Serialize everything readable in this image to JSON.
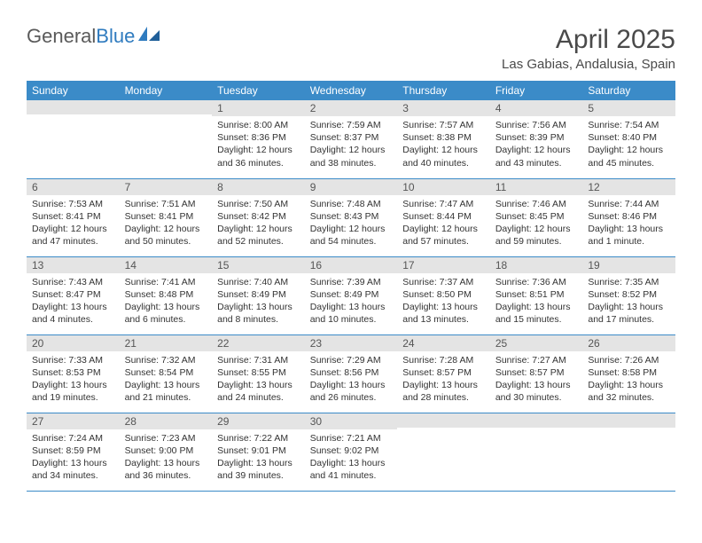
{
  "brand": {
    "part1": "General",
    "part2": "Blue"
  },
  "title": "April 2025",
  "location": "Las Gabias, Andalusia, Spain",
  "colors": {
    "header_bg": "#3b8bc8",
    "header_text": "#ffffff",
    "daynum_bg": "#e4e4e4",
    "row_divider": "#3b8bc8",
    "body_text": "#333333",
    "title_text": "#4a4a4a",
    "logo_gray": "#5a5a5a",
    "logo_blue": "#2f7bbf"
  },
  "day_headers": [
    "Sunday",
    "Monday",
    "Tuesday",
    "Wednesday",
    "Thursday",
    "Friday",
    "Saturday"
  ],
  "weeks": [
    [
      {
        "n": "",
        "lines": []
      },
      {
        "n": "",
        "lines": []
      },
      {
        "n": "1",
        "lines": [
          "Sunrise: 8:00 AM",
          "Sunset: 8:36 PM",
          "Daylight: 12 hours",
          "and 36 minutes."
        ]
      },
      {
        "n": "2",
        "lines": [
          "Sunrise: 7:59 AM",
          "Sunset: 8:37 PM",
          "Daylight: 12 hours",
          "and 38 minutes."
        ]
      },
      {
        "n": "3",
        "lines": [
          "Sunrise: 7:57 AM",
          "Sunset: 8:38 PM",
          "Daylight: 12 hours",
          "and 40 minutes."
        ]
      },
      {
        "n": "4",
        "lines": [
          "Sunrise: 7:56 AM",
          "Sunset: 8:39 PM",
          "Daylight: 12 hours",
          "and 43 minutes."
        ]
      },
      {
        "n": "5",
        "lines": [
          "Sunrise: 7:54 AM",
          "Sunset: 8:40 PM",
          "Daylight: 12 hours",
          "and 45 minutes."
        ]
      }
    ],
    [
      {
        "n": "6",
        "lines": [
          "Sunrise: 7:53 AM",
          "Sunset: 8:41 PM",
          "Daylight: 12 hours",
          "and 47 minutes."
        ]
      },
      {
        "n": "7",
        "lines": [
          "Sunrise: 7:51 AM",
          "Sunset: 8:41 PM",
          "Daylight: 12 hours",
          "and 50 minutes."
        ]
      },
      {
        "n": "8",
        "lines": [
          "Sunrise: 7:50 AM",
          "Sunset: 8:42 PM",
          "Daylight: 12 hours",
          "and 52 minutes."
        ]
      },
      {
        "n": "9",
        "lines": [
          "Sunrise: 7:48 AM",
          "Sunset: 8:43 PM",
          "Daylight: 12 hours",
          "and 54 minutes."
        ]
      },
      {
        "n": "10",
        "lines": [
          "Sunrise: 7:47 AM",
          "Sunset: 8:44 PM",
          "Daylight: 12 hours",
          "and 57 minutes."
        ]
      },
      {
        "n": "11",
        "lines": [
          "Sunrise: 7:46 AM",
          "Sunset: 8:45 PM",
          "Daylight: 12 hours",
          "and 59 minutes."
        ]
      },
      {
        "n": "12",
        "lines": [
          "Sunrise: 7:44 AM",
          "Sunset: 8:46 PM",
          "Daylight: 13 hours",
          "and 1 minute."
        ]
      }
    ],
    [
      {
        "n": "13",
        "lines": [
          "Sunrise: 7:43 AM",
          "Sunset: 8:47 PM",
          "Daylight: 13 hours",
          "and 4 minutes."
        ]
      },
      {
        "n": "14",
        "lines": [
          "Sunrise: 7:41 AM",
          "Sunset: 8:48 PM",
          "Daylight: 13 hours",
          "and 6 minutes."
        ]
      },
      {
        "n": "15",
        "lines": [
          "Sunrise: 7:40 AM",
          "Sunset: 8:49 PM",
          "Daylight: 13 hours",
          "and 8 minutes."
        ]
      },
      {
        "n": "16",
        "lines": [
          "Sunrise: 7:39 AM",
          "Sunset: 8:49 PM",
          "Daylight: 13 hours",
          "and 10 minutes."
        ]
      },
      {
        "n": "17",
        "lines": [
          "Sunrise: 7:37 AM",
          "Sunset: 8:50 PM",
          "Daylight: 13 hours",
          "and 13 minutes."
        ]
      },
      {
        "n": "18",
        "lines": [
          "Sunrise: 7:36 AM",
          "Sunset: 8:51 PM",
          "Daylight: 13 hours",
          "and 15 minutes."
        ]
      },
      {
        "n": "19",
        "lines": [
          "Sunrise: 7:35 AM",
          "Sunset: 8:52 PM",
          "Daylight: 13 hours",
          "and 17 minutes."
        ]
      }
    ],
    [
      {
        "n": "20",
        "lines": [
          "Sunrise: 7:33 AM",
          "Sunset: 8:53 PM",
          "Daylight: 13 hours",
          "and 19 minutes."
        ]
      },
      {
        "n": "21",
        "lines": [
          "Sunrise: 7:32 AM",
          "Sunset: 8:54 PM",
          "Daylight: 13 hours",
          "and 21 minutes."
        ]
      },
      {
        "n": "22",
        "lines": [
          "Sunrise: 7:31 AM",
          "Sunset: 8:55 PM",
          "Daylight: 13 hours",
          "and 24 minutes."
        ]
      },
      {
        "n": "23",
        "lines": [
          "Sunrise: 7:29 AM",
          "Sunset: 8:56 PM",
          "Daylight: 13 hours",
          "and 26 minutes."
        ]
      },
      {
        "n": "24",
        "lines": [
          "Sunrise: 7:28 AM",
          "Sunset: 8:57 PM",
          "Daylight: 13 hours",
          "and 28 minutes."
        ]
      },
      {
        "n": "25",
        "lines": [
          "Sunrise: 7:27 AM",
          "Sunset: 8:57 PM",
          "Daylight: 13 hours",
          "and 30 minutes."
        ]
      },
      {
        "n": "26",
        "lines": [
          "Sunrise: 7:26 AM",
          "Sunset: 8:58 PM",
          "Daylight: 13 hours",
          "and 32 minutes."
        ]
      }
    ],
    [
      {
        "n": "27",
        "lines": [
          "Sunrise: 7:24 AM",
          "Sunset: 8:59 PM",
          "Daylight: 13 hours",
          "and 34 minutes."
        ]
      },
      {
        "n": "28",
        "lines": [
          "Sunrise: 7:23 AM",
          "Sunset: 9:00 PM",
          "Daylight: 13 hours",
          "and 36 minutes."
        ]
      },
      {
        "n": "29",
        "lines": [
          "Sunrise: 7:22 AM",
          "Sunset: 9:01 PM",
          "Daylight: 13 hours",
          "and 39 minutes."
        ]
      },
      {
        "n": "30",
        "lines": [
          "Sunrise: 7:21 AM",
          "Sunset: 9:02 PM",
          "Daylight: 13 hours",
          "and 41 minutes."
        ]
      },
      {
        "n": "",
        "lines": []
      },
      {
        "n": "",
        "lines": []
      },
      {
        "n": "",
        "lines": []
      }
    ]
  ]
}
